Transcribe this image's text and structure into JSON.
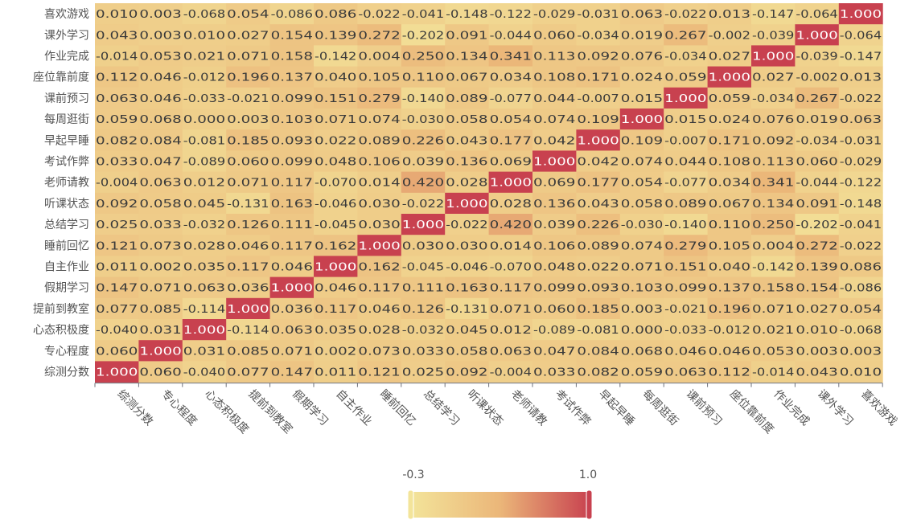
{
  "chart_data": {
    "type": "heatmap",
    "x_categories": [
      "综测分数",
      "专心程度",
      "心态积极度",
      "提前到教室",
      "假期学习",
      "自主作业",
      "睡前回忆",
      "总结学习",
      "听课状态",
      "老师请教",
      "考试作弊",
      "早起早睡",
      "每周逛街",
      "课前预习",
      "座位靠前度",
      "作业完成",
      "课外学习",
      "喜欢游戏"
    ],
    "y_categories": [
      "综测分数",
      "专心程度",
      "心态积极度",
      "提前到教室",
      "假期学习",
      "自主作业",
      "睡前回忆",
      "总结学习",
      "听课状态",
      "老师请教",
      "考试作弊",
      "早起早睡",
      "每周逛街",
      "课前预习",
      "座位靠前度",
      "作业完成",
      "课外学习",
      "喜欢游戏"
    ],
    "y_order": "bottom-to-top",
    "matrix_rows_top_to_bottom": [
      {
        "row": "喜欢游戏",
        "values": [
          "0.010",
          "0.003",
          "-0.068",
          "0.054",
          "-0.086",
          "0.086",
          "-0.022",
          "-0.041",
          "-0.148",
          "-0.122",
          "-0.029",
          "-0.031",
          "0.063",
          "-0.022",
          "0.013",
          "-0.147",
          "-0.064",
          "1.000"
        ]
      },
      {
        "row": "课外学习",
        "values": [
          "0.043",
          "0.003",
          "0.010",
          "0.027",
          "0.154",
          "0.139",
          "0.272",
          "-0.202",
          "0.091",
          "-0.044",
          "0.060",
          "-0.034",
          "0.019",
          "0.267",
          "-0.002",
          "-0.039",
          "1.000",
          "-0.064"
        ]
      },
      {
        "row": "作业完成",
        "values": [
          "-0.014",
          "0.053",
          "0.021",
          "0.071",
          "0.158",
          "-0.142",
          "0.004",
          "0.250",
          "0.134",
          "0.341",
          "0.113",
          "0.092",
          "0.076",
          "-0.034",
          "0.027",
          "1.000",
          "-0.039",
          "-0.147"
        ]
      },
      {
        "row": "座位靠前度",
        "values": [
          "0.112",
          "0.046",
          "-0.012",
          "0.196",
          "0.137",
          "0.040",
          "0.105",
          "0.110",
          "0.067",
          "0.034",
          "0.108",
          "0.171",
          "0.024",
          "0.059",
          "1.000",
          "0.027",
          "-0.002",
          "0.013"
        ]
      },
      {
        "row": "课前预习",
        "values": [
          "0.063",
          "0.046",
          "-0.033",
          "-0.021",
          "0.099",
          "0.151",
          "0.279",
          "-0.140",
          "0.089",
          "-0.077",
          "0.044",
          "-0.007",
          "0.015",
          "1.000",
          "0.059",
          "-0.034",
          "0.267",
          "-0.022"
        ]
      },
      {
        "row": "每周逛街",
        "values": [
          "0.059",
          "0.068",
          "0.000",
          "0.003",
          "0.103",
          "0.071",
          "0.074",
          "-0.030",
          "0.058",
          "0.054",
          "0.074",
          "0.109",
          "1.000",
          "0.015",
          "0.024",
          "0.076",
          "0.019",
          "0.063"
        ]
      },
      {
        "row": "早起早睡",
        "values": [
          "0.082",
          "0.084",
          "-0.081",
          "0.185",
          "0.093",
          "0.022",
          "0.089",
          "0.226",
          "0.043",
          "0.177",
          "0.042",
          "1.000",
          "0.109",
          "-0.007",
          "0.171",
          "0.092",
          "-0.034",
          "-0.031"
        ]
      },
      {
        "row": "考试作弊",
        "values": [
          "0.033",
          "0.047",
          "-0.089",
          "0.060",
          "0.099",
          "0.048",
          "0.106",
          "0.039",
          "0.136",
          "0.069",
          "1.000",
          "0.042",
          "0.074",
          "0.044",
          "0.108",
          "0.113",
          "0.060",
          "-0.029"
        ]
      },
      {
        "row": "老师请教",
        "values": [
          "-0.004",
          "0.063",
          "0.012",
          "0.071",
          "0.117",
          "-0.070",
          "0.014",
          "0.420",
          "0.028",
          "1.000",
          "0.069",
          "0.177",
          "0.054",
          "-0.077",
          "0.034",
          "0.341",
          "-0.044",
          "-0.122"
        ]
      },
      {
        "row": "听课状态",
        "values": [
          "0.092",
          "0.058",
          "0.045",
          "-0.131",
          "0.163",
          "-0.046",
          "0.030",
          "-0.022",
          "1.000",
          "0.028",
          "0.136",
          "0.043",
          "0.058",
          "0.089",
          "0.067",
          "0.134",
          "0.091",
          "-0.148"
        ]
      },
      {
        "row": "总结学习",
        "values": [
          "0.025",
          "0.033",
          "-0.032",
          "0.126",
          "0.111",
          "-0.045",
          "0.030",
          "1.000",
          "-0.022",
          "0.420",
          "0.039",
          "0.226",
          "-0.030",
          "-0.140",
          "0.110",
          "0.250",
          "-0.202",
          "-0.041"
        ]
      },
      {
        "row": "睡前回忆",
        "values": [
          "0.121",
          "0.073",
          "0.028",
          "0.046",
          "0.117",
          "0.162",
          "1.000",
          "0.030",
          "0.030",
          "0.014",
          "0.106",
          "0.089",
          "0.074",
          "0.279",
          "0.105",
          "0.004",
          "0.272",
          "-0.022"
        ]
      },
      {
        "row": "自主作业",
        "values": [
          "0.011",
          "0.002",
          "0.035",
          "0.117",
          "0.046",
          "1.000",
          "0.162",
          "-0.045",
          "-0.046",
          "-0.070",
          "0.048",
          "0.022",
          "0.071",
          "0.151",
          "0.040",
          "-0.142",
          "0.139",
          "0.086"
        ]
      },
      {
        "row": "假期学习",
        "values": [
          "0.147",
          "0.071",
          "0.063",
          "0.036",
          "1.000",
          "0.046",
          "0.117",
          "0.111",
          "0.163",
          "0.117",
          "0.099",
          "0.093",
          "0.103",
          "0.099",
          "0.137",
          "0.158",
          "0.154",
          "-0.086"
        ]
      },
      {
        "row": "提前到教室",
        "values": [
          "0.077",
          "0.085",
          "-0.114",
          "1.000",
          "0.036",
          "0.117",
          "0.046",
          "0.126",
          "-0.131",
          "0.071",
          "0.060",
          "0.185",
          "0.003",
          "-0.021",
          "0.196",
          "0.071",
          "0.027",
          "0.054"
        ]
      },
      {
        "row": "心态积极度",
        "values": [
          "-0.040",
          "0.031",
          "1.000",
          "-0.114",
          "0.063",
          "0.035",
          "0.028",
          "-0.032",
          "0.045",
          "0.012",
          "-0.089",
          "-0.081",
          "0.000",
          "-0.033",
          "-0.012",
          "0.021",
          "0.010",
          "-0.068"
        ]
      },
      {
        "row": "专心程度",
        "values": [
          "0.060",
          "1.000",
          "0.031",
          "0.085",
          "0.071",
          "0.002",
          "0.073",
          "0.033",
          "0.058",
          "0.063",
          "0.047",
          "0.084",
          "0.068",
          "0.046",
          "0.046",
          "0.053",
          "0.003",
          "0.003"
        ]
      },
      {
        "row": "综测分数",
        "values": [
          "1.000",
          "0.060",
          "-0.040",
          "0.077",
          "0.147",
          "0.011",
          "0.121",
          "0.025",
          "0.092",
          "-0.004",
          "0.033",
          "0.082",
          "0.059",
          "0.063",
          "0.112",
          "-0.014",
          "0.043",
          "0.010"
        ]
      }
    ],
    "visual_map": {
      "min": -0.3,
      "max": 1.0,
      "min_label": "-0.3",
      "max_label": "1.0",
      "colors": [
        "#f3e49a",
        "#ebb679",
        "#c8414f"
      ]
    },
    "grid": false,
    "legend": "bottom-center"
  }
}
